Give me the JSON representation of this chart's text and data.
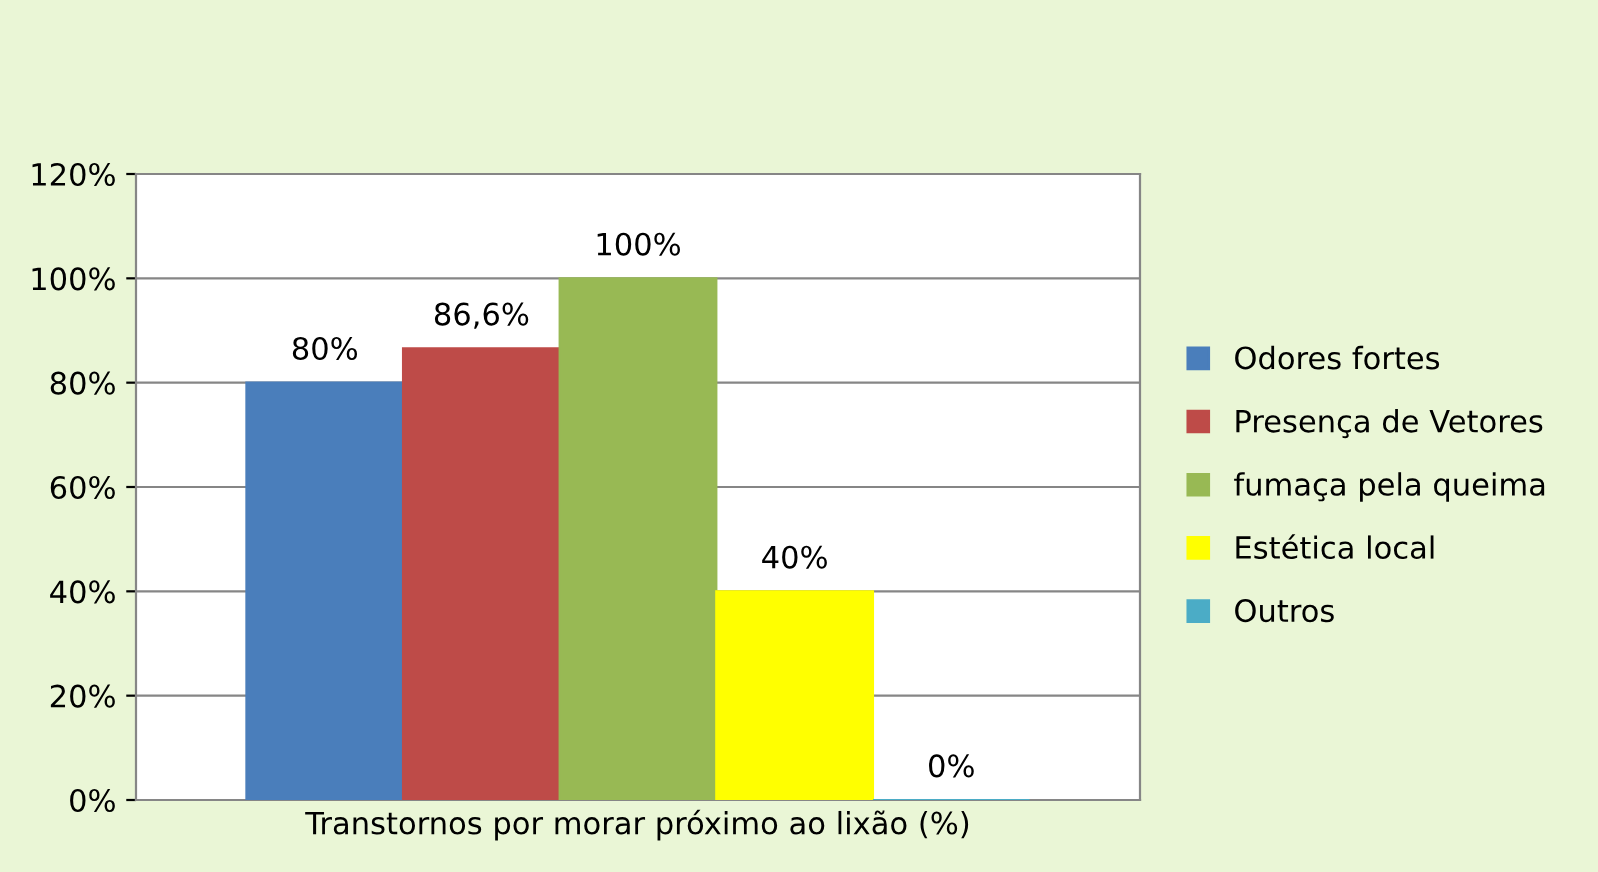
{
  "chart_data": {
    "type": "bar",
    "categories": [
      "Transtornos por morar próximo ao lixão (%)"
    ],
    "series": [
      {
        "name": "Odores fortes",
        "color": "#4a7ebb",
        "values": [
          80
        ],
        "value_labels": [
          "80%"
        ]
      },
      {
        "name": "Presença de Vetores",
        "color": "#be4b48",
        "values": [
          86.6
        ],
        "value_labels": [
          "86,6%"
        ]
      },
      {
        "name": "fumaça pela queima",
        "color": "#98b954",
        "values": [
          100
        ],
        "value_labels": [
          "100%"
        ]
      },
      {
        "name": "Estética local",
        "color": "#ffff00",
        "values": [
          40
        ],
        "value_labels": [
          "40%"
        ]
      },
      {
        "name": "Outros",
        "color": "#4bacc6",
        "values": [
          0
        ],
        "value_labels": [
          "0%"
        ]
      }
    ],
    "ylim": [
      0,
      120
    ],
    "yticks": [
      {
        "value": 0,
        "label": "0%"
      },
      {
        "value": 20,
        "label": "20%"
      },
      {
        "value": 40,
        "label": "40%"
      },
      {
        "value": 60,
        "label": "60%"
      },
      {
        "value": 80,
        "label": "80%"
      },
      {
        "value": 100,
        "label": "100%"
      },
      {
        "value": 120,
        "label": "120%"
      }
    ],
    "grid": "y",
    "legend": "right"
  }
}
